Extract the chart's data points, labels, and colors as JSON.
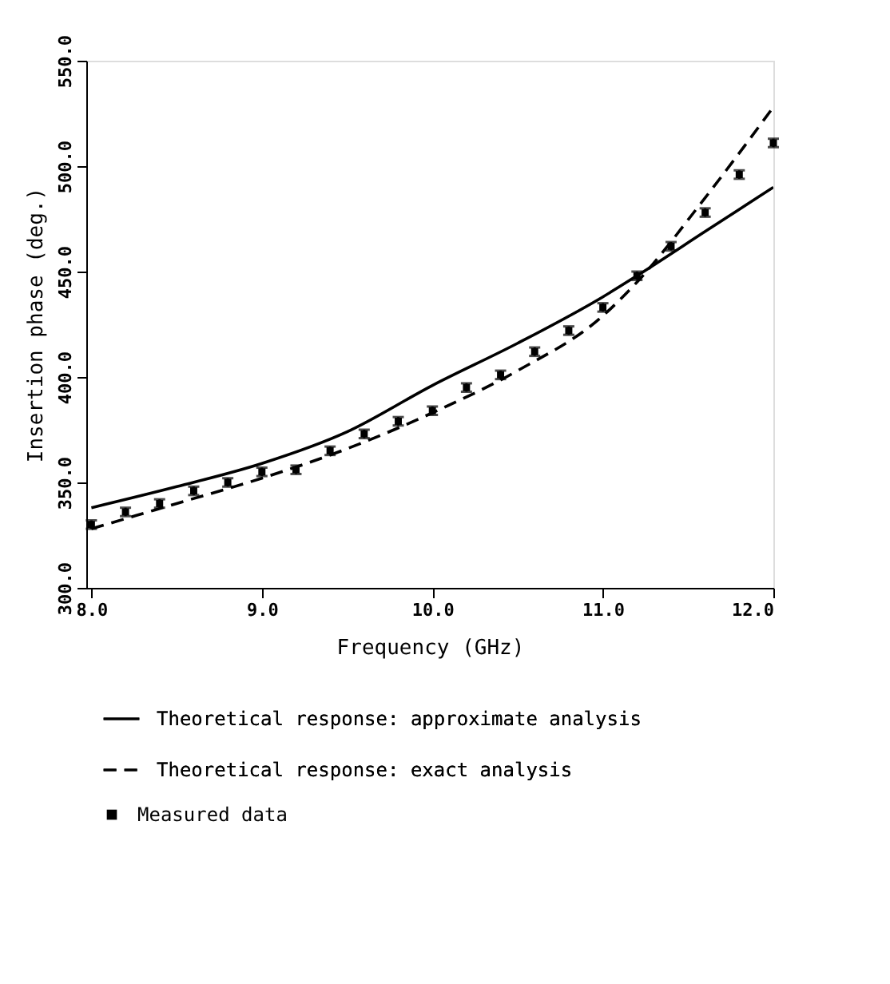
{
  "chart_data": {
    "type": "line",
    "xlabel": "Frequency (GHz)",
    "ylabel": "Insertion phase (deg.)",
    "xlim": [
      7.97,
      12.0
    ],
    "ylim": [
      300,
      550
    ],
    "xticks": [
      {
        "value": 8,
        "label": "8.0"
      },
      {
        "value": 9,
        "label": "9.0"
      },
      {
        "value": 10,
        "label": "10.0"
      },
      {
        "value": 11,
        "label": "11.0"
      },
      {
        "value": 12,
        "label": "12.0"
      }
    ],
    "yticks": [
      {
        "value": 300,
        "label": "300.0"
      },
      {
        "value": 350,
        "label": "350.0"
      },
      {
        "value": 400,
        "label": "400.0"
      },
      {
        "value": 450,
        "label": "450.0"
      },
      {
        "value": 500,
        "label": "500.0"
      },
      {
        "value": 550,
        "label": "550.0"
      }
    ],
    "legend": "bottom",
    "series": [
      {
        "name": "Theoretical response: approximate analysis",
        "line_style": "solid",
        "color": "#000000",
        "x": [
          8.0,
          8.5,
          9.0,
          9.5,
          10.0,
          10.5,
          11.0,
          11.2,
          11.6,
          12.0
        ],
        "values": [
          338,
          348,
          359,
          374,
          396,
          416,
          438,
          448,
          469,
          490
        ]
      },
      {
        "name": "Theoretical response: exact analysis",
        "line_style": "dashed",
        "color": "#000000",
        "x": [
          8.0,
          8.5,
          9.0,
          9.5,
          10.0,
          10.5,
          11.0,
          11.2,
          11.6,
          12.0
        ],
        "values": [
          328,
          340,
          352,
          366,
          383,
          403,
          429,
          445,
          485,
          528
        ]
      },
      {
        "name": "Measured data",
        "type": "scatter",
        "marker": "square",
        "color": "#000000",
        "x": [
          8.0,
          8.2,
          8.4,
          8.6,
          8.8,
          9.0,
          9.2,
          9.4,
          9.6,
          9.8,
          10.0,
          10.2,
          10.4,
          10.6,
          10.8,
          11.0,
          11.2,
          11.4,
          11.6,
          11.8,
          12.0
        ],
        "values": [
          330,
          336,
          340,
          346,
          350,
          355,
          356,
          365,
          373,
          379,
          384,
          395,
          401,
          412,
          422,
          433,
          448,
          462,
          478,
          496,
          511
        ],
        "errors": [
          2,
          2,
          2,
          2,
          2,
          2,
          2,
          2,
          2,
          2,
          2,
          2,
          2,
          2,
          2,
          2,
          2,
          2,
          2,
          2,
          2
        ]
      }
    ]
  }
}
